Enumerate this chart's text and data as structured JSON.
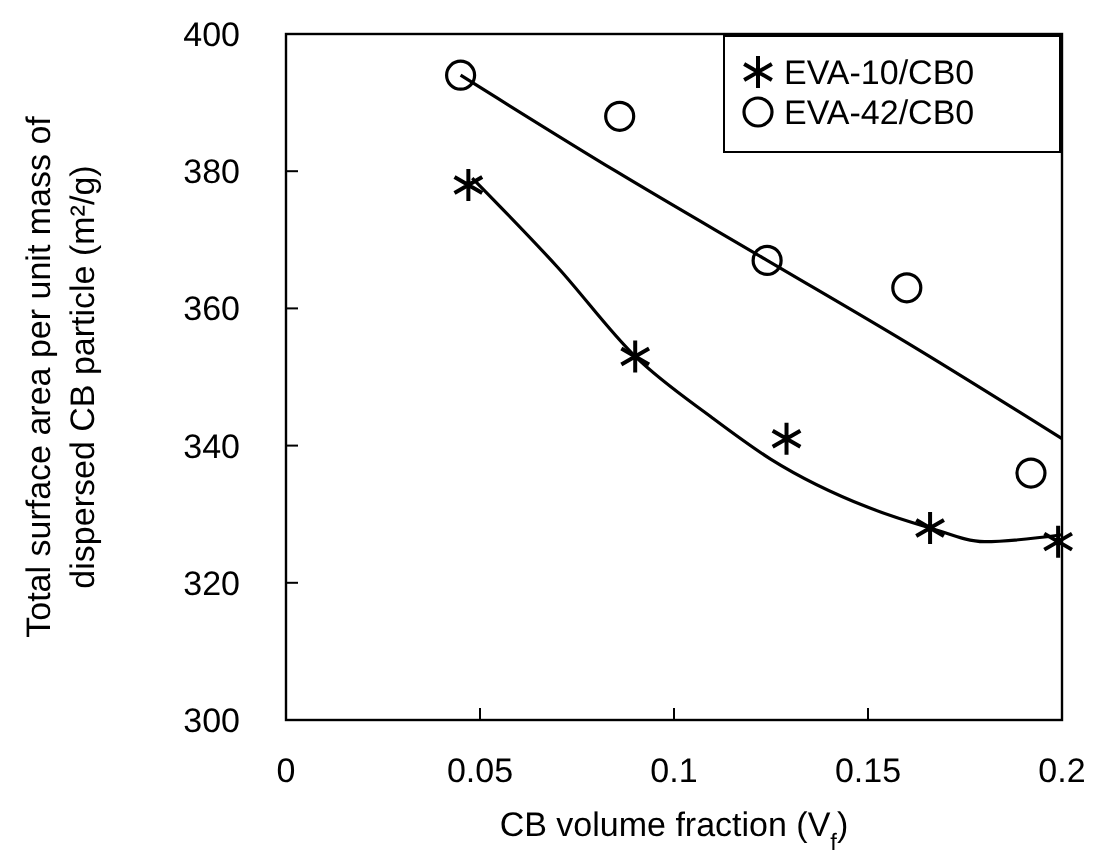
{
  "chart_data": {
    "type": "scatter",
    "xlabel": "CB volume fraction (V$_{f}$)",
    "ylabel": "Total surface area per unit mass of dispersed CB particle (m²/g)",
    "xlim": [
      0,
      0.2
    ],
    "xticks": [
      0,
      0.05,
      0.1,
      0.15,
      0.2
    ],
    "ylim": [
      300,
      400
    ],
    "yticks": [
      300,
      320,
      340,
      360,
      380,
      400
    ],
    "grid": false,
    "legend": "top right",
    "series": [
      {
        "name": "EVA-10/CB0",
        "marker": "cross",
        "color": "#000000",
        "x": [
          0.047,
          0.09,
          0.129,
          0.166,
          0.199
        ],
        "values": [
          378,
          353,
          341,
          328,
          326
        ]
      },
      {
        "name": "EVA-42/CB0",
        "marker": "circle",
        "color": "#000000",
        "x": [
          0.045,
          0.086,
          0.124,
          0.16,
          0.192
        ],
        "values": [
          394,
          388,
          367,
          363,
          336
        ]
      },
      {
        "type": "line",
        "marker": "none",
        "color": "#000000",
        "x": [
          0.048,
          0.07,
          0.09,
          0.11,
          0.125,
          0.15,
          0.166,
          0.18,
          0.2
        ],
        "values": [
          379,
          366,
          353,
          344,
          338,
          331,
          328,
          326,
          327
        ]
      },
      {
        "type": "line",
        "marker": "none",
        "color": "#000000",
        "x": [
          0.045,
          0.085,
          0.124,
          0.16,
          0.2
        ],
        "values": [
          394,
          380,
          367,
          355,
          341
        ]
      }
    ]
  }
}
